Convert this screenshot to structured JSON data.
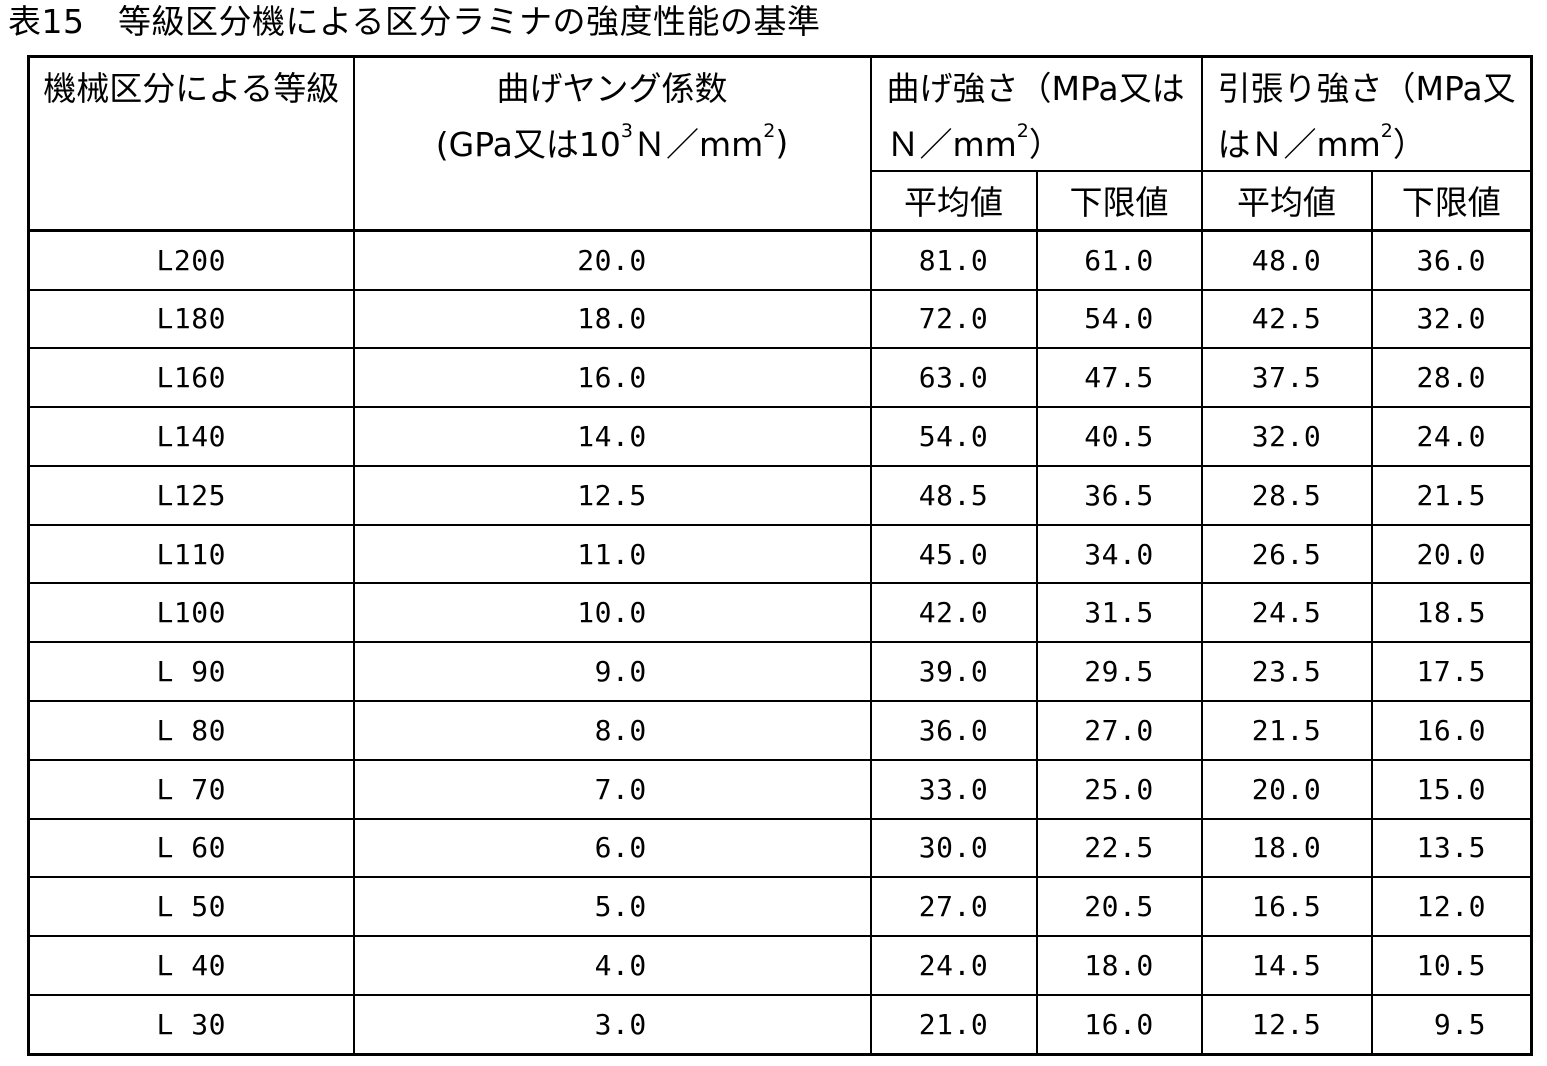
{
  "title": "表15　等級区分機による区分ラミナの強度性能の基準",
  "colors": {
    "text": "#000000",
    "background": "#ffffff",
    "border": "#000000"
  },
  "table": {
    "headers": {
      "grade": "機械区分による等級",
      "youngs_modulus": {
        "line1": "曲げヤング係数",
        "line2_parts": [
          "(GPa又は10",
          "3",
          "Ｎ／mm",
          "2",
          ")"
        ]
      },
      "bending_strength": {
        "line1": "曲げ強さ（MPa又は",
        "line2_parts": [
          "Ｎ／mm",
          "2",
          "）"
        ]
      },
      "tensile_strength": {
        "line1": "引張り強さ（MPa又",
        "line2_parts": [
          "はＮ／mm",
          "2",
          "）"
        ]
      },
      "mean": "平均値",
      "lower_limit": "下限値"
    },
    "rows": [
      {
        "grade": "L200",
        "modulus": "20.0",
        "bend_mean": "81.0",
        "bend_lower": "61.0",
        "tens_mean": "48.0",
        "tens_lower": "36.0"
      },
      {
        "grade": "L180",
        "modulus": "18.0",
        "bend_mean": "72.0",
        "bend_lower": "54.0",
        "tens_mean": "42.5",
        "tens_lower": "32.0"
      },
      {
        "grade": "L160",
        "modulus": "16.0",
        "bend_mean": "63.0",
        "bend_lower": "47.5",
        "tens_mean": "37.5",
        "tens_lower": "28.0"
      },
      {
        "grade": "L140",
        "modulus": "14.0",
        "bend_mean": "54.0",
        "bend_lower": "40.5",
        "tens_mean": "32.0",
        "tens_lower": "24.0"
      },
      {
        "grade": "L125",
        "modulus": "12.5",
        "bend_mean": "48.5",
        "bend_lower": "36.5",
        "tens_mean": "28.5",
        "tens_lower": "21.5"
      },
      {
        "grade": "L110",
        "modulus": "11.0",
        "bend_mean": "45.0",
        "bend_lower": "34.0",
        "tens_mean": "26.5",
        "tens_lower": "20.0"
      },
      {
        "grade": "L100",
        "modulus": "10.0",
        "bend_mean": "42.0",
        "bend_lower": "31.5",
        "tens_mean": "24.5",
        "tens_lower": "18.5"
      },
      {
        "grade": "L 90",
        "modulus": " 9.0",
        "bend_mean": "39.0",
        "bend_lower": "29.5",
        "tens_mean": "23.5",
        "tens_lower": "17.5"
      },
      {
        "grade": "L 80",
        "modulus": " 8.0",
        "bend_mean": "36.0",
        "bend_lower": "27.0",
        "tens_mean": "21.5",
        "tens_lower": "16.0"
      },
      {
        "grade": "L 70",
        "modulus": " 7.0",
        "bend_mean": "33.0",
        "bend_lower": "25.0",
        "tens_mean": "20.0",
        "tens_lower": "15.0"
      },
      {
        "grade": "L 60",
        "modulus": " 6.0",
        "bend_mean": "30.0",
        "bend_lower": "22.5",
        "tens_mean": "18.0",
        "tens_lower": "13.5"
      },
      {
        "grade": "L 50",
        "modulus": " 5.0",
        "bend_mean": "27.0",
        "bend_lower": "20.5",
        "tens_mean": "16.5",
        "tens_lower": "12.0"
      },
      {
        "grade": "L 40",
        "modulus": " 4.0",
        "bend_mean": "24.0",
        "bend_lower": "18.0",
        "tens_mean": "14.5",
        "tens_lower": "10.5"
      },
      {
        "grade": "L 30",
        "modulus": " 3.0",
        "bend_mean": "21.0",
        "bend_lower": "16.0",
        "tens_mean": "12.5",
        "tens_lower": " 9.5"
      }
    ]
  }
}
